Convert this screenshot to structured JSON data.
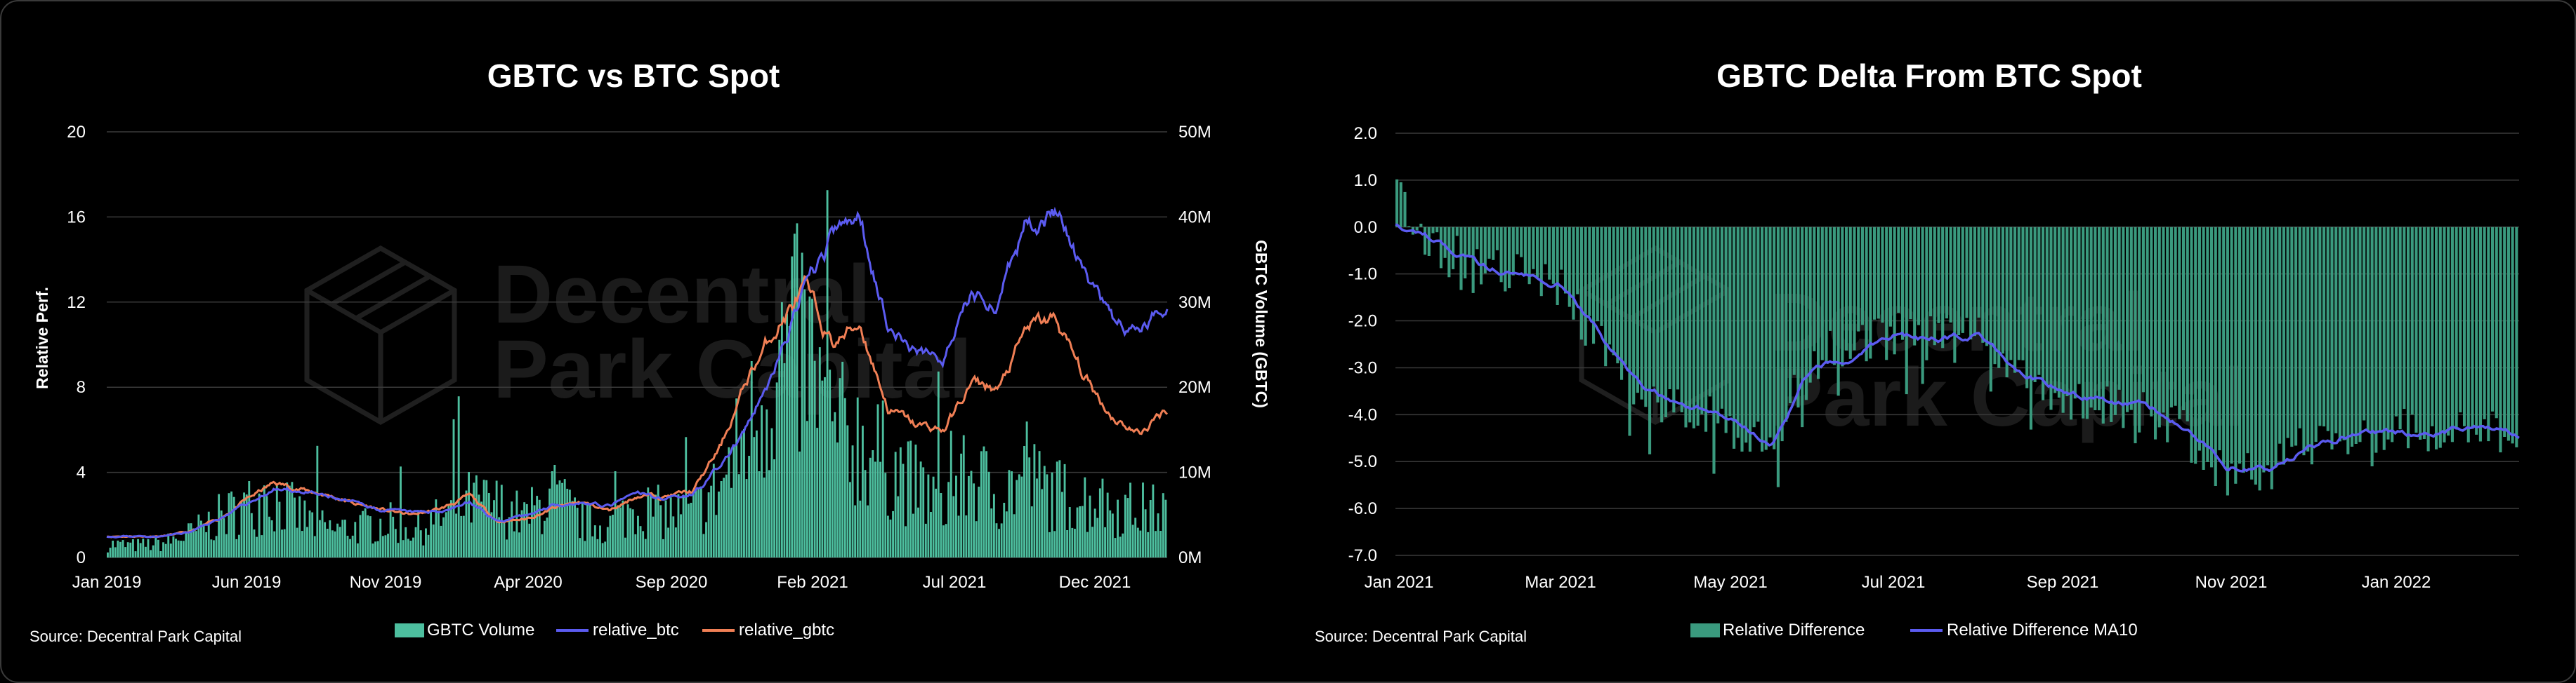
{
  "colors": {
    "background": "#000000",
    "volume": "#4dbf9f",
    "btc": "#5b5bf0",
    "gbtc": "#f07f55",
    "delta": "#3a9a7e",
    "ma": "#5b5bf0",
    "grid": "#3a3a3a",
    "text": "#ffffff",
    "watermark": "#1b1b1b"
  },
  "watermark": {
    "line1": "Decentral",
    "line2": "Park Capital",
    "icon": "cube-logo-icon"
  },
  "chart_data": [
    {
      "type": "bar+line",
      "title": "GBTC vs BTC Spot",
      "ylabel": "Relative Perf.",
      "y2label": "GBTC Volume (GBTC)",
      "ylim": [
        0,
        20
      ],
      "y2lim": [
        0,
        50
      ],
      "y2_unit": "M",
      "yticks": [
        "0",
        "4",
        "8",
        "12",
        "16",
        "20"
      ],
      "y2ticks": [
        "0M",
        "10M",
        "20M",
        "30M",
        "40M",
        "50M"
      ],
      "xticks": [
        "Jan 2019",
        "Jun 2019",
        "Nov 2019",
        "Apr 2020",
        "Sep 2020",
        "Feb 2021",
        "Jul 2021",
        "Dec 2021"
      ],
      "source": "Source: Decentral Park Capital",
      "legend": [
        "GBTC Volume",
        "relative_btc",
        "relative_gbtc"
      ],
      "grid": true,
      "x": [
        "2019-01",
        "2019-02",
        "2019-03",
        "2019-04",
        "2019-05",
        "2019-06",
        "2019-07",
        "2019-08",
        "2019-09",
        "2019-10",
        "2019-11",
        "2019-12",
        "2020-01",
        "2020-02",
        "2020-03",
        "2020-04",
        "2020-05",
        "2020-06",
        "2020-07",
        "2020-08",
        "2020-09",
        "2020-10",
        "2020-11",
        "2020-12",
        "2021-01",
        "2021-02",
        "2021-03",
        "2021-04",
        "2021-05",
        "2021-06",
        "2021-07",
        "2021-08",
        "2021-09",
        "2021-10",
        "2021-11",
        "2021-12",
        "2022-01",
        "2022-02",
        "2022-03"
      ],
      "series": [
        {
          "name": "relative_btc",
          "axis": "left",
          "values": [
            1.0,
            1.0,
            1.0,
            1.2,
            1.8,
            2.5,
            3.2,
            3.1,
            2.8,
            2.5,
            2.2,
            2.1,
            2.2,
            2.6,
            1.7,
            1.9,
            2.5,
            2.6,
            2.4,
            3.0,
            2.8,
            3.0,
            4.3,
            6.2,
            9.0,
            12.5,
            15.0,
            16.0,
            11.0,
            9.6,
            9.4,
            12.3,
            12.0,
            15.8,
            16.4,
            13.2,
            11.0,
            10.5,
            12.0
          ]
        },
        {
          "name": "relative_gbtc",
          "axis": "left",
          "values": [
            1.0,
            1.0,
            1.0,
            1.2,
            1.8,
            2.7,
            3.5,
            3.2,
            2.9,
            2.5,
            2.2,
            2.0,
            2.3,
            2.9,
            1.7,
            1.8,
            2.3,
            2.6,
            2.2,
            2.9,
            2.9,
            3.1,
            5.2,
            8.5,
            10.8,
            12.6,
            10.0,
            11.0,
            7.0,
            6.2,
            6.0,
            8.2,
            7.9,
            10.8,
            11.2,
            8.5,
            6.7,
            5.8,
            7.0
          ]
        },
        {
          "name": "GBTC Volume",
          "axis": "right",
          "values": [
            1.7,
            1.5,
            1.8,
            3.0,
            5.0,
            6.5,
            7.5,
            5.0,
            3.5,
            3.8,
            4.5,
            3.5,
            5.0,
            7.0,
            6.5,
            5.0,
            8.0,
            4.5,
            4.0,
            6.5,
            5.5,
            5.5,
            9.0,
            16.0,
            24.0,
            27.0,
            16.0,
            15.0,
            12.0,
            9.0,
            7.0,
            10.5,
            8.0,
            10.0,
            8.0,
            7.5,
            6.5,
            6.0,
            6.0
          ]
        }
      ]
    },
    {
      "type": "bar+line",
      "title": "GBTC Delta From BTC Spot",
      "ylim": [
        -7,
        2
      ],
      "yticks": [
        "2.0",
        "1.0",
        "0.0",
        "-1.0",
        "-2.0",
        "-3.0",
        "-4.0",
        "-5.0",
        "-6.0",
        "-7.0"
      ],
      "xticks": [
        "Jan 2021",
        "Mar 2021",
        "May 2021",
        "Jul 2021",
        "Sep 2021",
        "Nov 2021",
        "Jan 2022"
      ],
      "source": "Source: Decentral Park Capital",
      "legend": [
        "Relative Difference",
        "Relative Difference MA10"
      ],
      "grid": true,
      "x": [
        "2021-01-01",
        "2021-01-15",
        "2021-02-01",
        "2021-02-15",
        "2021-03-01",
        "2021-03-15",
        "2021-04-01",
        "2021-04-15",
        "2021-05-01",
        "2021-05-15",
        "2021-06-01",
        "2021-06-15",
        "2021-07-01",
        "2021-07-15",
        "2021-08-01",
        "2021-08-15",
        "2021-09-01",
        "2021-09-15",
        "2021-10-01",
        "2021-10-15",
        "2021-11-01",
        "2021-11-15",
        "2021-12-01",
        "2021-12-15",
        "2022-01-01",
        "2022-01-15",
        "2022-02-01",
        "2022-02-15"
      ],
      "series": [
        {
          "name": "Relative Difference",
          "values": [
            0.2,
            -0.4,
            -0.9,
            -1.0,
            -1.4,
            -2.6,
            -3.7,
            -3.8,
            -4.3,
            -4.6,
            -2.8,
            -2.6,
            -2.3,
            -2.4,
            -2.4,
            -3.2,
            -3.6,
            -3.9,
            -3.9,
            -4.4,
            -5.3,
            -5.2,
            -4.6,
            -4.4,
            -4.3,
            -4.4,
            -4.3,
            -4.5
          ]
        },
        {
          "name": "Relative Difference MA10",
          "values": [
            0.1,
            -0.3,
            -0.8,
            -1.0,
            -1.2,
            -2.4,
            -3.5,
            -3.8,
            -4.0,
            -4.6,
            -3.0,
            -2.7,
            -2.3,
            -2.4,
            -2.3,
            -3.0,
            -3.5,
            -3.7,
            -3.7,
            -4.3,
            -5.1,
            -5.2,
            -4.7,
            -4.4,
            -4.4,
            -4.4,
            -4.2,
            -4.4
          ]
        }
      ]
    }
  ]
}
